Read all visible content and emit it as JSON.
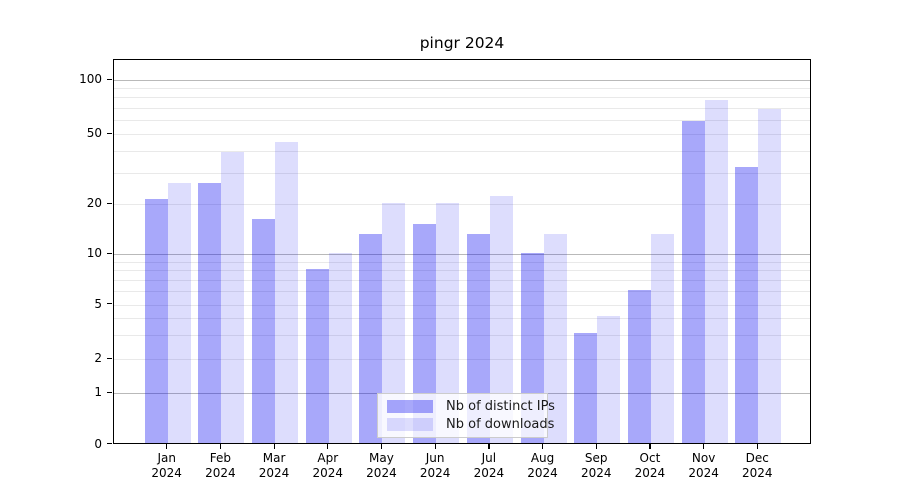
{
  "title": "pingr 2024",
  "chart_data": {
    "type": "bar",
    "title": "pingr 2024",
    "categories": [
      "Jan",
      "Feb",
      "Mar",
      "Apr",
      "May",
      "Jun",
      "Jul",
      "Aug",
      "Sep",
      "Oct",
      "Nov",
      "Dec"
    ],
    "category_year": "2024",
    "series": [
      {
        "name": "Nb of distinct IPs",
        "color": "rgba(0,0,240,0.34)",
        "values": [
          21,
          26,
          16,
          8,
          13,
          15,
          13,
          10,
          3,
          6,
          58,
          32
        ]
      },
      {
        "name": "Nb of downloads",
        "color": "rgba(0,0,240,0.135)",
        "values": [
          26,
          39,
          44,
          10,
          20,
          20,
          22,
          13,
          4,
          13,
          76,
          68
        ]
      }
    ],
    "y_scale": "symlog",
    "y_ticks": [
      0,
      1,
      2,
      5,
      10,
      20,
      50,
      100
    ],
    "y_major_gridlines": [
      1,
      10,
      100
    ],
    "y_minor_gridlines": [
      2,
      3,
      4,
      5,
      6,
      7,
      8,
      9,
      20,
      30,
      40,
      50,
      60,
      70,
      80,
      90
    ],
    "ylim": [
      0,
      128
    ],
    "grid": true,
    "legend_position": "lower center"
  }
}
